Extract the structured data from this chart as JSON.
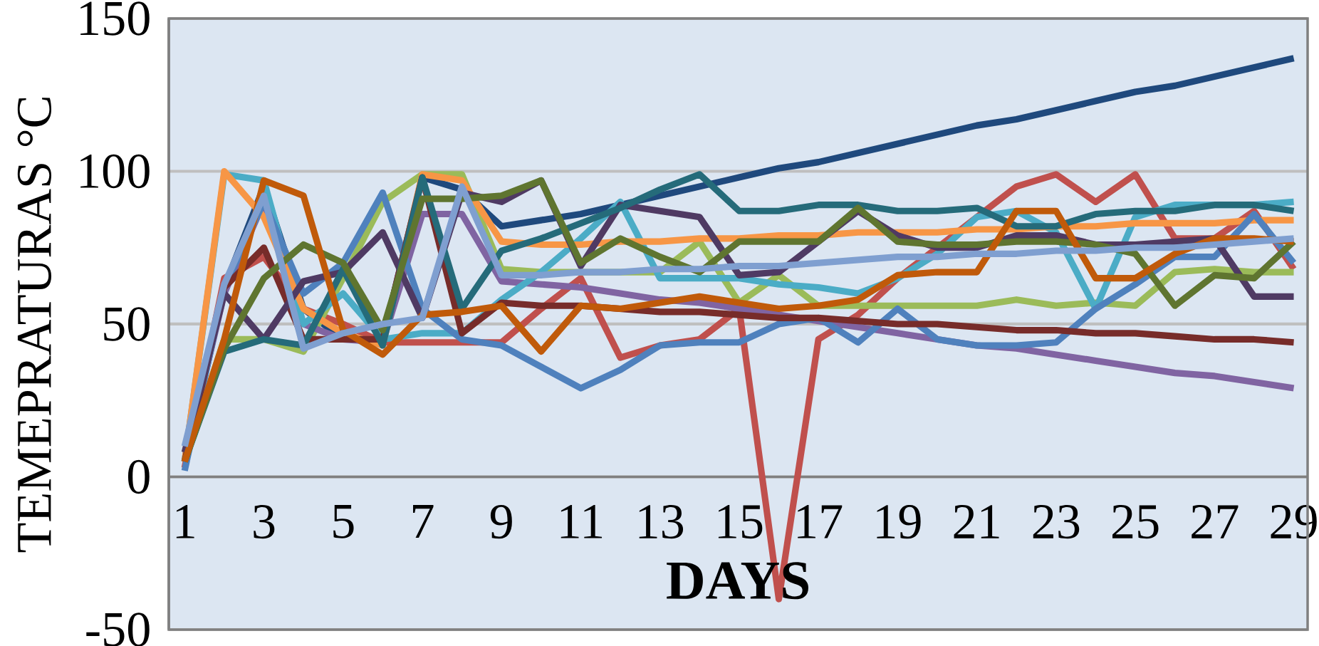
{
  "chart_data": {
    "type": "line",
    "xlabel": "DAYS",
    "ylabel": "TEMEPRATURAS °C",
    "categories": [
      "1",
      null,
      "3",
      null,
      "5",
      null,
      "7",
      null,
      "9",
      null,
      "11",
      null,
      "13",
      null,
      "15",
      null,
      "17",
      null,
      "19",
      null,
      "21",
      null,
      "23",
      null,
      "25",
      null,
      "27",
      null,
      "29"
    ],
    "ylim": [
      -50,
      150
    ],
    "yticks": [
      -50,
      0,
      50,
      100,
      150
    ],
    "grid": "y",
    "marker": "none",
    "line_style": "solid",
    "series": [
      {
        "color": "#1f497d",
        "values": [
          5,
          62,
          95,
          55,
          45,
          45,
          98,
          94,
          82,
          84,
          86,
          89,
          92,
          95,
          98,
          101,
          103,
          106,
          109,
          112,
          115,
          117,
          120,
          123,
          126,
          128,
          131,
          134,
          137
        ]
      },
      {
        "color": "#c0504d",
        "values": [
          3,
          65,
          72,
          55,
          50,
          44,
          44,
          44,
          44,
          55,
          65,
          39,
          43,
          45,
          55,
          -40,
          45,
          53,
          65,
          75,
          85,
          95,
          99,
          90,
          99,
          78,
          78,
          87,
          68
        ]
      },
      {
        "color": "#9bbb59",
        "values": [
          5,
          45,
          45,
          41,
          65,
          90,
          99,
          99,
          68,
          67,
          67,
          67,
          67,
          77,
          57,
          66,
          56,
          56,
          56,
          56,
          56,
          58,
          56,
          57,
          56,
          67,
          68,
          67,
          67
        ]
      },
      {
        "color": "#8064a2",
        "values": [
          5,
          60,
          90,
          50,
          45,
          44,
          86,
          86,
          64,
          63,
          62,
          60,
          58,
          57,
          55,
          53,
          51,
          49,
          47,
          45,
          43,
          42,
          40,
          38,
          36,
          34,
          33,
          31,
          29
        ]
      },
      {
        "color": "#4bacc6",
        "values": [
          5,
          99,
          97,
          50,
          60,
          45,
          47,
          47,
          58,
          67,
          78,
          90,
          65,
          65,
          65,
          63,
          62,
          60,
          65,
          73,
          85,
          87,
          80,
          55,
          85,
          89,
          89,
          89,
          90
        ]
      },
      {
        "color": "#f79646",
        "values": [
          5,
          100,
          85,
          55,
          47,
          43,
          99,
          97,
          77,
          76,
          76,
          77,
          77,
          78,
          78,
          79,
          79,
          80,
          80,
          80,
          81,
          81,
          82,
          82,
          83,
          83,
          83,
          84,
          84
        ]
      },
      {
        "color": "#4f81bd",
        "values": [
          2,
          62,
          90,
          60,
          70,
          93,
          55,
          45,
          43,
          36,
          29,
          35,
          43,
          44,
          44,
          50,
          52,
          44,
          55,
          45,
          43,
          43,
          44,
          55,
          63,
          72,
          72,
          86,
          70
        ]
      },
      {
        "color": "#772c2a",
        "values": [
          5,
          62,
          75,
          45,
          45,
          45,
          98,
          47,
          57,
          56,
          56,
          55,
          54,
          54,
          53,
          52,
          52,
          51,
          50,
          50,
          49,
          48,
          48,
          47,
          47,
          46,
          45,
          45,
          44
        ]
      },
      {
        "color": "#4f3a63",
        "values": [
          8,
          60,
          45,
          64,
          67,
          80,
          52,
          93,
          90,
          97,
          69,
          89,
          87,
          85,
          66,
          67,
          77,
          87,
          79,
          75,
          75,
          79,
          79,
          76,
          76,
          77,
          78,
          59,
          59
        ]
      },
      {
        "color": "#256b7a",
        "values": [
          5,
          41,
          45,
          43,
          68,
          43,
          98,
          55,
          74,
          78,
          83,
          88,
          94,
          99,
          87,
          87,
          89,
          89,
          87,
          87,
          88,
          82,
          82,
          86,
          87,
          87,
          89,
          89,
          87
        ]
      },
      {
        "color": "#5f7530",
        "values": [
          5,
          42,
          65,
          76,
          70,
          48,
          91,
          91,
          92,
          97,
          70,
          78,
          72,
          67,
          77,
          77,
          77,
          88,
          77,
          76,
          76,
          77,
          77,
          76,
          73,
          56,
          66,
          65,
          77
        ]
      },
      {
        "color": "#c05a0a",
        "values": [
          5,
          45,
          97,
          92,
          48,
          40,
          53,
          54,
          56,
          41,
          56,
          55,
          57,
          59,
          57,
          55,
          56,
          58,
          66,
          67,
          67,
          87,
          87,
          65,
          65,
          73,
          78,
          78,
          77
        ]
      },
      {
        "color": "#7f9fd0",
        "values": [
          10,
          63,
          92,
          42,
          47,
          50,
          52,
          95,
          66,
          66,
          67,
          67,
          68,
          68,
          69,
          69,
          70,
          71,
          72,
          72,
          73,
          73,
          74,
          74,
          75,
          75,
          76,
          77,
          78
        ]
      }
    ]
  }
}
